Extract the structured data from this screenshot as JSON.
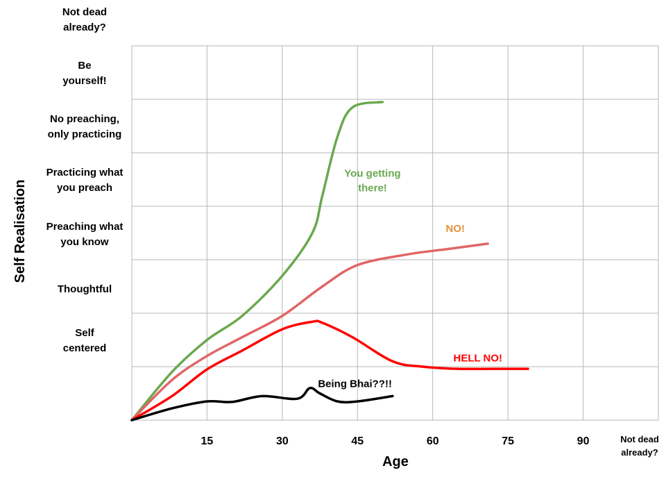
{
  "chart_data": {
    "type": "line",
    "title": "",
    "xlabel": "Age",
    "ylabel": "Self Realisation",
    "xlim": [
      0,
      105
    ],
    "ylim": [
      0,
      7
    ],
    "grid": true,
    "x_ticks": [
      {
        "value": 15,
        "label": "15"
      },
      {
        "value": 30,
        "label": "30"
      },
      {
        "value": 45,
        "label": "45"
      },
      {
        "value": 60,
        "label": "60"
      },
      {
        "value": 75,
        "label": "75"
      },
      {
        "value": 90,
        "label": "90"
      },
      {
        "value": 105,
        "label": "Not dead already?"
      }
    ],
    "y_ticks": [
      {
        "value": 1,
        "label": "Self centered"
      },
      {
        "value": 2,
        "label": "Thoughtful"
      },
      {
        "value": 3,
        "label": "Preaching what you know"
      },
      {
        "value": 4,
        "label": "Practicing what you preach"
      },
      {
        "value": 5,
        "label": "No preaching, only practicing"
      },
      {
        "value": 6,
        "label": "Be yourself!"
      },
      {
        "value": 7,
        "label": "Not dead already?"
      }
    ],
    "series": [
      {
        "name": "You getting there!",
        "color": "#6aa84f",
        "x": [
          0,
          8,
          15,
          22,
          30,
          36,
          38,
          41,
          44,
          50
        ],
        "y": [
          0,
          0.9,
          1.5,
          1.95,
          2.7,
          3.5,
          4.2,
          5.3,
          5.85,
          5.95
        ]
      },
      {
        "name": "NO!",
        "color": "#e06666",
        "x": [
          0,
          8,
          15,
          22,
          30,
          38,
          45,
          55,
          63,
          71
        ],
        "y": [
          0,
          0.75,
          1.2,
          1.55,
          1.95,
          2.5,
          2.9,
          3.1,
          3.2,
          3.3
        ]
      },
      {
        "name": "HELL NO!",
        "color": "#ff0000",
        "x": [
          0,
          8,
          15,
          22,
          30,
          36,
          38,
          44,
          52,
          58,
          65,
          72,
          79
        ],
        "y": [
          0,
          0.45,
          0.95,
          1.3,
          1.7,
          1.84,
          1.82,
          1.55,
          1.1,
          1.0,
          0.96,
          0.96,
          0.96
        ]
      },
      {
        "name": "Being Bhai??!!",
        "color": "#000000",
        "x": [
          0,
          8,
          15,
          20,
          26,
          33,
          35.5,
          37.5,
          41,
          45,
          52
        ],
        "y": [
          0,
          0.22,
          0.35,
          0.34,
          0.45,
          0.4,
          0.6,
          0.5,
          0.35,
          0.35,
          0.45
        ]
      }
    ],
    "annotations": [
      {
        "text_lines": [
          "You getting",
          "there!"
        ],
        "color": "#6aa84f",
        "x": 48,
        "y": 4.55
      },
      {
        "text_lines": [
          "NO!"
        ],
        "color": "#e69138",
        "x": 64.5,
        "y": 3.52
      },
      {
        "text_lines": [
          "HELL NO!"
        ],
        "color": "#ff0000",
        "x": 69,
        "y": 1.1
      },
      {
        "text_lines": [
          "Being Bhai??!!"
        ],
        "color": "#000000",
        "x": 44.5,
        "y": 0.62
      }
    ]
  }
}
